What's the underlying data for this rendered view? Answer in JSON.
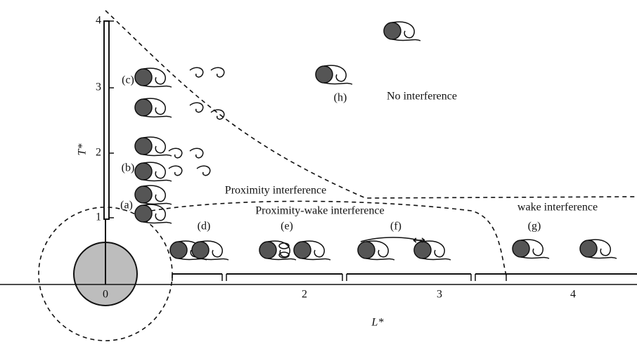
{
  "axes": {
    "y": {
      "label": "T*",
      "ticks": [
        "4",
        "3",
        "2",
        "1"
      ]
    },
    "x": {
      "label": "L*",
      "ticks": [
        "0",
        "2",
        "3",
        "4"
      ]
    }
  },
  "cases": [
    "(a)",
    "(b)",
    "(c)",
    "(d)",
    "(e)",
    "(f)",
    "(g)",
    "(h)"
  ],
  "regions": [
    "No interference",
    "Proximity interference",
    "Proximity-wake interference",
    "wake interference"
  ]
}
